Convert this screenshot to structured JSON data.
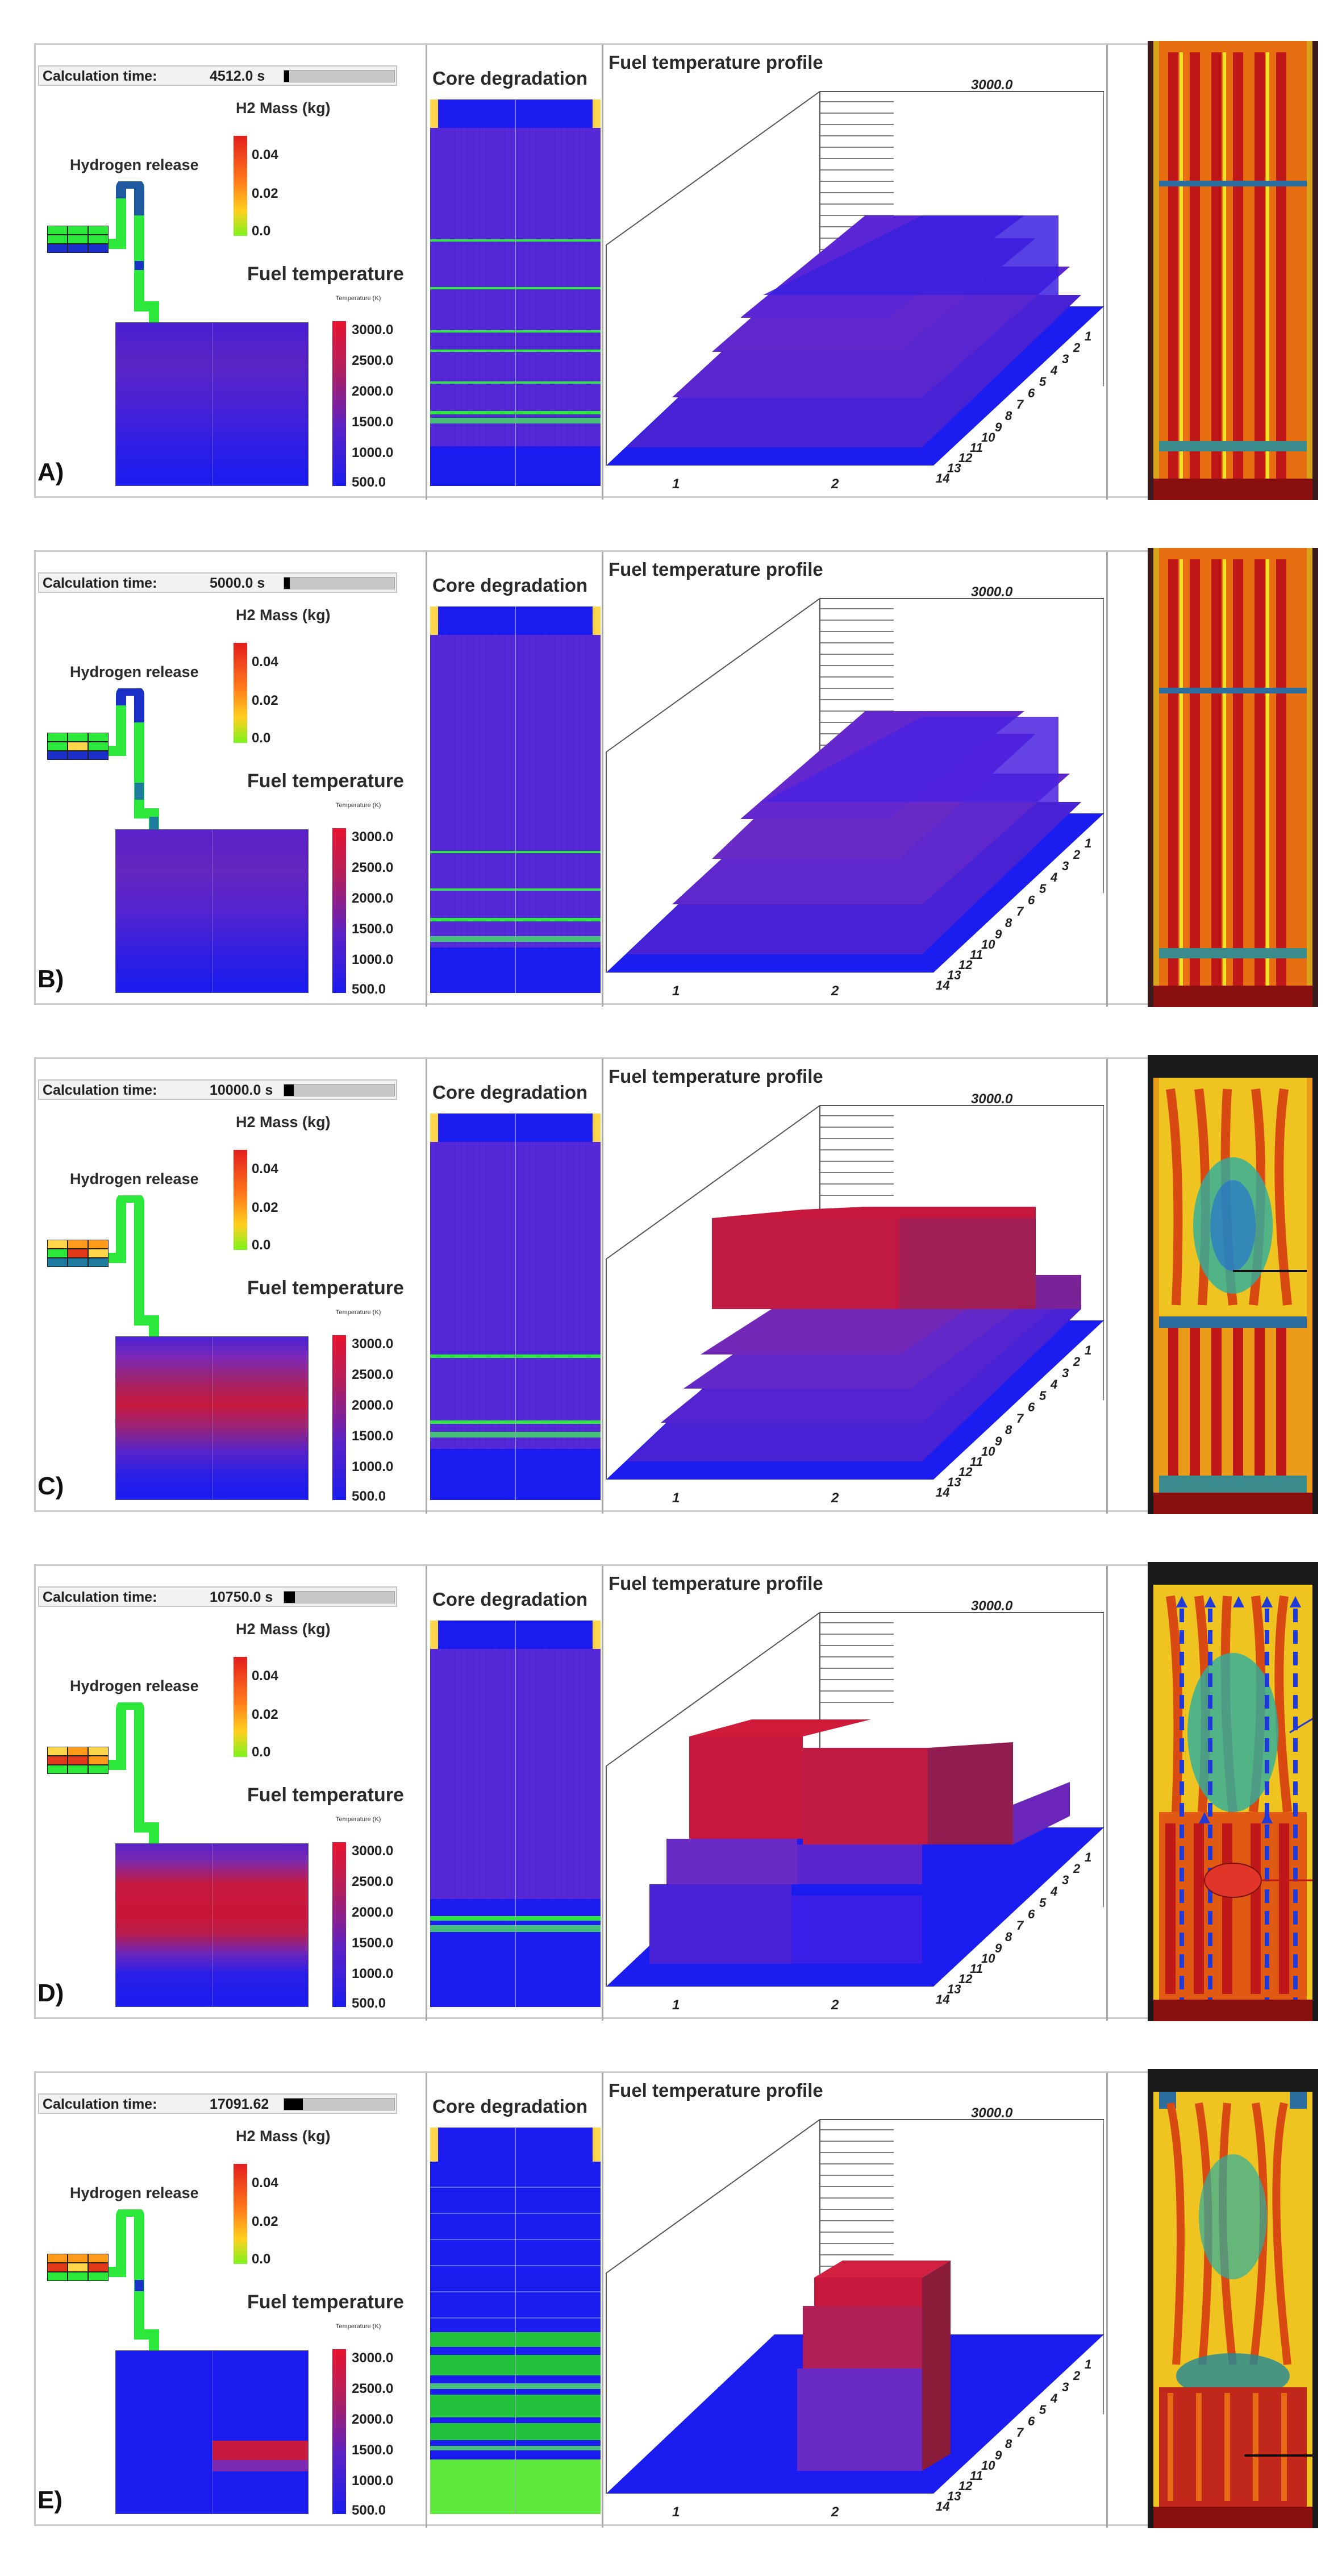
{
  "labels": {
    "calc_time": "Calculation  time:",
    "core_degradation": "Core degradation",
    "fuel_temp_profile": "Fuel temperature profile",
    "h2_mass": "H2 Mass (kg)",
    "hydrogen_release": "Hydrogen release",
    "fuel_temperature": "Fuel temperature",
    "temperature_unit": "Temperature (K)"
  },
  "h2_scale": [
    "0.04",
    "0.02",
    "0.0"
  ],
  "temp_scale": [
    "3000.0",
    "2500.0",
    "2000.0",
    "1500.0",
    "1000.0",
    "500.0"
  ],
  "profile_axis": {
    "top_label": "3000.0",
    "x_labels": [
      "1",
      "2"
    ],
    "y_labels": [
      "14",
      "13",
      "12",
      "11",
      "10",
      "9",
      "8",
      "7",
      "6",
      "5",
      "4",
      "3",
      "2",
      "1"
    ]
  },
  "colors": {
    "cold": "#1a1cf0",
    "mid": "#6a2bd6",
    "hot": "#c4183e",
    "green": "#2be83a",
    "yellow": "#ffd54a"
  },
  "snapshots": [
    {
      "label": "A)",
      "time": "4512.0 s",
      "progress": 0.045
    },
    {
      "label": "B)",
      "time": "5000.0 s",
      "progress": 0.05
    },
    {
      "label": "C)",
      "time": "10000.0 s",
      "progress": 0.09
    },
    {
      "label": "D)",
      "time": "10750.0 s",
      "progress": 0.1
    },
    {
      "label": "E)",
      "time": "17091.62",
      "progress": 0.17
    }
  ]
}
